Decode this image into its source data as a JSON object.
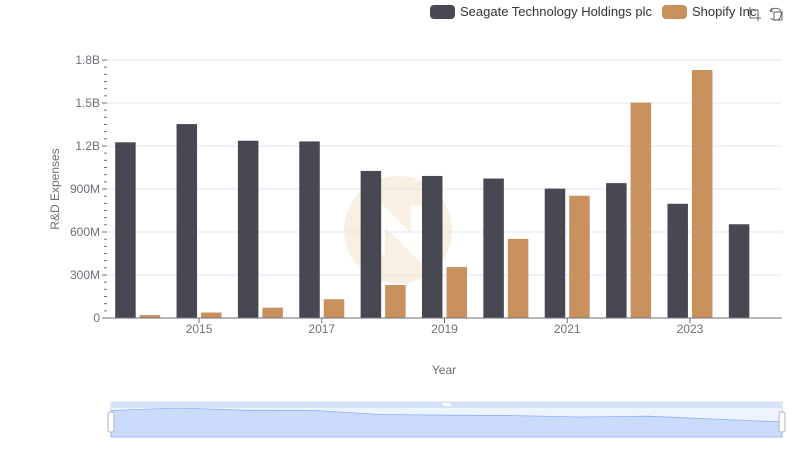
{
  "chart_data": {
    "type": "bar",
    "x": [
      2014,
      2015,
      2016,
      2017,
      2018,
      2019,
      2020,
      2021,
      2022,
      2023,
      2024
    ],
    "xticks": [
      "2015",
      "2017",
      "2019",
      "2021",
      "2023"
    ],
    "xlabel": "Year",
    "ylabel": "R&D Expenses",
    "ylim": [
      0,
      1800000000
    ],
    "yticks": [
      "0",
      "300M",
      "600M",
      "900M",
      "1.2B",
      "1.5B",
      "1.8B"
    ],
    "grid": true,
    "legend_position": "top-right",
    "series": [
      {
        "name": "Seagate Technology Holdings plc",
        "color": "#484853",
        "values": [
          1226000000,
          1353000000,
          1237000000,
          1232000000,
          1026000000,
          991000000,
          973000000,
          903000000,
          941000000,
          797000000,
          654000000
        ]
      },
      {
        "name": "Shopify Inc.",
        "color": "#c8915d",
        "values": [
          20000000,
          38000000,
          72000000,
          131000000,
          230000000,
          355000000,
          552000000,
          853000000,
          1503000000,
          1730000000,
          null
        ]
      }
    ]
  },
  "toolbar": {
    "zoom_icon": "zoom-select-icon",
    "restore_icon": "restore-icon"
  },
  "colors": {
    "grid": "#e0e6f1",
    "axis": "#6e7079",
    "watermark": "#f3e3cf",
    "zoom_fill": "#d7e3fb",
    "zoom_line": "#8fb0f7"
  }
}
